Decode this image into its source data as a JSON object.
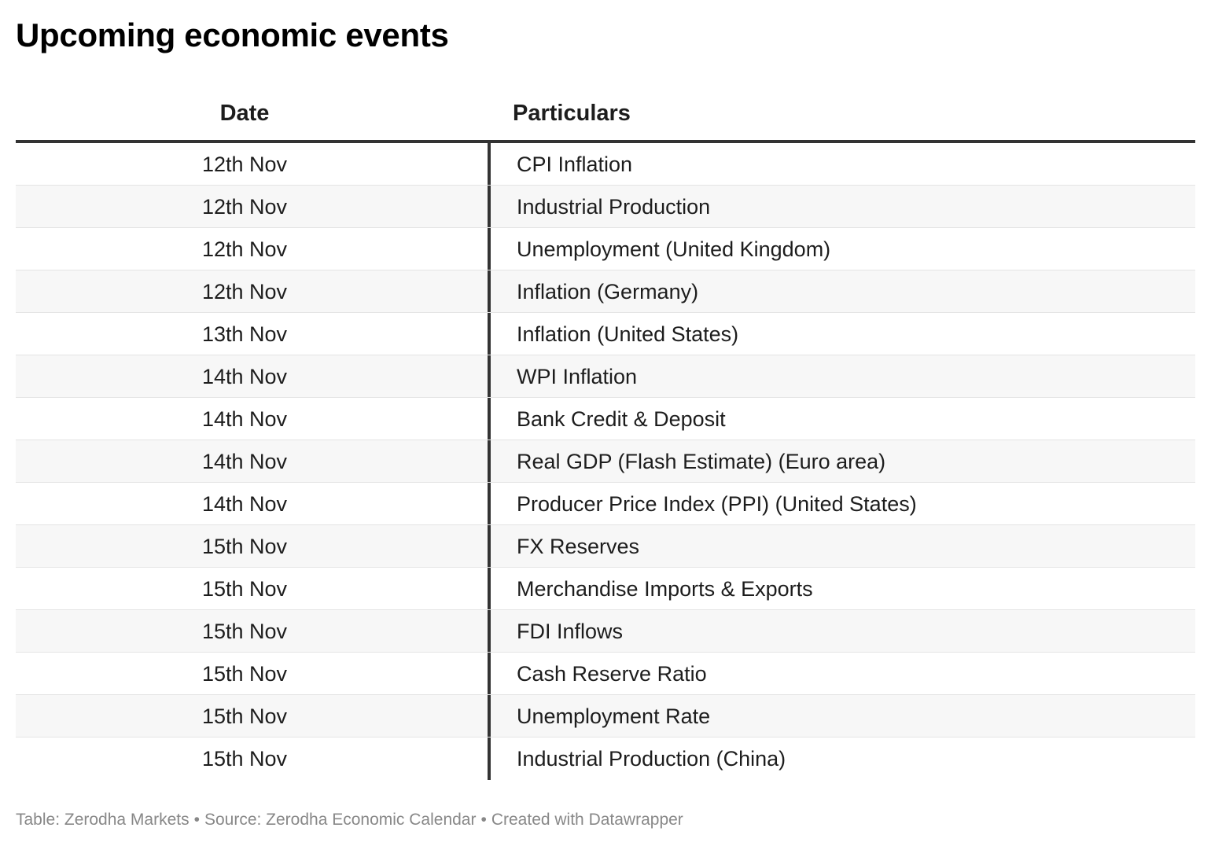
{
  "title": "Upcoming economic events",
  "table": {
    "headers": {
      "date": "Date",
      "particulars": "Particulars"
    },
    "rows": [
      {
        "date": "12th Nov",
        "particulars": "CPI Inflation"
      },
      {
        "date": "12th Nov",
        "particulars": "Industrial Production"
      },
      {
        "date": "12th Nov",
        "particulars": "Unemployment (United Kingdom)"
      },
      {
        "date": "12th Nov",
        "particulars": "Inflation (Germany)"
      },
      {
        "date": "13th Nov",
        "particulars": "Inflation (United States)"
      },
      {
        "date": "14th Nov",
        "particulars": "WPI Inflation"
      },
      {
        "date": "14th Nov",
        "particulars": "Bank Credit & Deposit"
      },
      {
        "date": "14th Nov",
        "particulars": "Real GDP (Flash Estimate) (Euro area)"
      },
      {
        "date": "14th Nov",
        "particulars": "Producer Price Index (PPI) (United States)"
      },
      {
        "date": "15th Nov",
        "particulars": "FX Reserves"
      },
      {
        "date": "15th Nov",
        "particulars": "Merchandise Imports & Exports"
      },
      {
        "date": "15th Nov",
        "particulars": "FDI Inflows"
      },
      {
        "date": "15th Nov",
        "particulars": "Cash Reserve Ratio"
      },
      {
        "date": "15th Nov",
        "particulars": "Unemployment Rate"
      },
      {
        "date": "15th Nov",
        "particulars": "Industrial Production (China)"
      }
    ]
  },
  "footer": {
    "table_credit": "Table: Zerodha Markets",
    "source": "Source: Zerodha Economic Calendar",
    "created": "Created with Datawrapper",
    "separator": "•"
  }
}
